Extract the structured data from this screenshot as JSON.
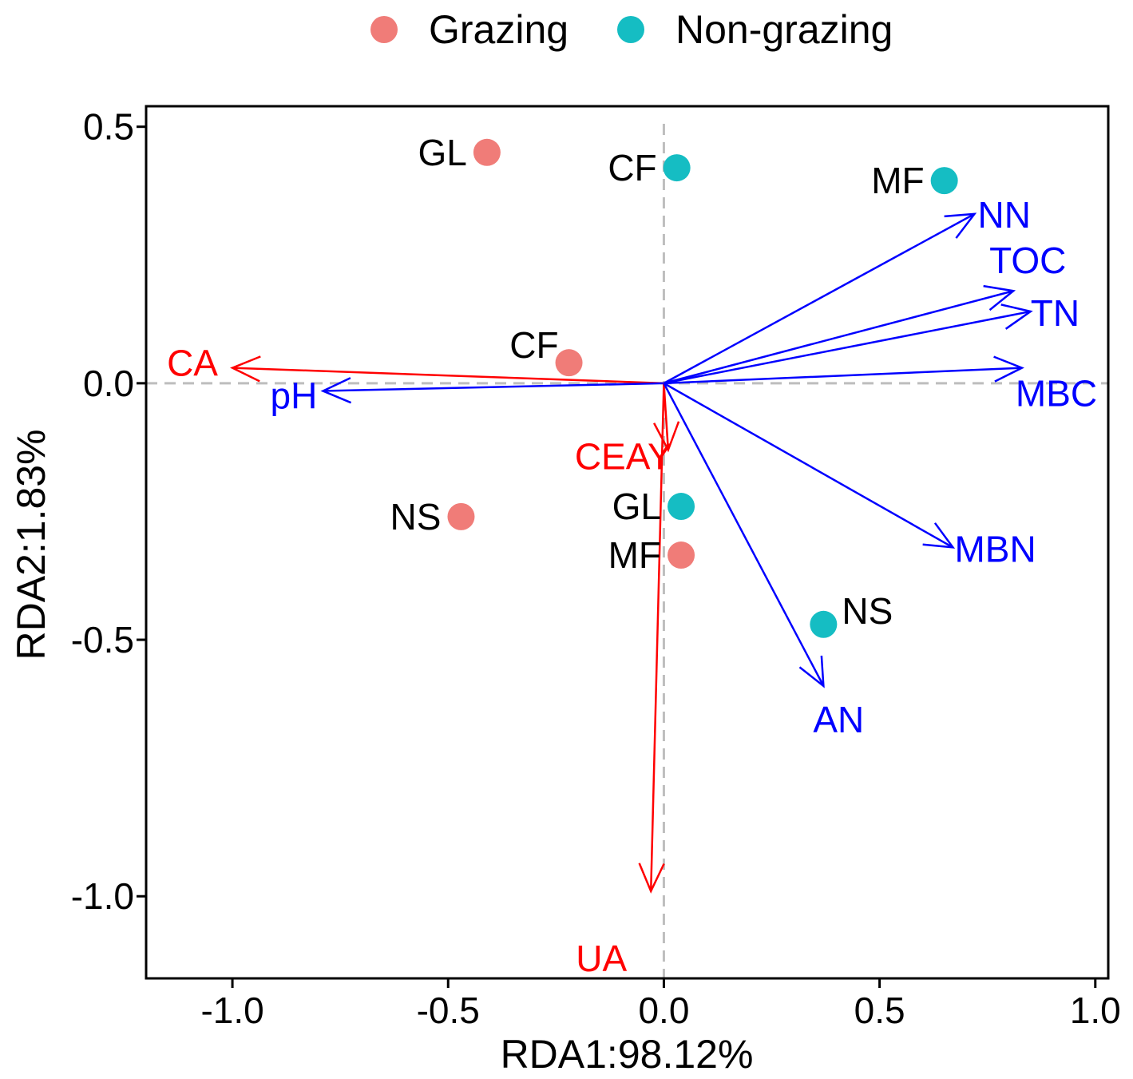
{
  "chart_data": {
    "type": "scatter",
    "xlabel": "RDA1:98.12%",
    "ylabel": "RDA2:1.83%",
    "xlim": [
      -1.2,
      1.03
    ],
    "ylim": [
      -1.16,
      0.54
    ],
    "xticks": [
      -1.0,
      -0.5,
      0.0,
      0.5,
      1.0
    ],
    "xtick_labels": [
      "-1.0",
      "-0.5",
      "0.0",
      "0.5",
      "1.0"
    ],
    "yticks": [
      -1.0,
      -0.5,
      0.0,
      0.5
    ],
    "ytick_labels": [
      "-1.0",
      "-0.5",
      "0.0",
      "0.5"
    ],
    "legend": {
      "position": "top",
      "entries": [
        {
          "name": "Grazing",
          "color": "#F07C78"
        },
        {
          "name": "Non-grazing",
          "color": "#15BDC3"
        }
      ]
    },
    "series": [
      {
        "name": "Grazing",
        "color": "#F07C78",
        "points": [
          {
            "label": "GL",
            "x": -0.41,
            "y": 0.45
          },
          {
            "label": "CF",
            "x": -0.22,
            "y": 0.04
          },
          {
            "label": "NS",
            "x": -0.47,
            "y": -0.26
          },
          {
            "label": "MF",
            "x": 0.04,
            "y": -0.335
          }
        ]
      },
      {
        "name": "Non-grazing",
        "color": "#15BDC3",
        "points": [
          {
            "label": "CF",
            "x": 0.03,
            "y": 0.42
          },
          {
            "label": "MF",
            "x": 0.65,
            "y": 0.395
          },
          {
            "label": "GL",
            "x": 0.04,
            "y": -0.24
          },
          {
            "label": "NS",
            "x": 0.37,
            "y": -0.47
          }
        ]
      }
    ],
    "vectors": [
      {
        "label": "CA",
        "x": -1.0,
        "y": 0.03,
        "color": "#FF0000"
      },
      {
        "label": "pH",
        "x": -0.79,
        "y": -0.015,
        "color": "#0000FF"
      },
      {
        "label": "CEAY",
        "x": 0.01,
        "y": -0.13,
        "color": "#FF0000"
      },
      {
        "label": "UA",
        "x": -0.03,
        "y": -0.99,
        "color": "#FF0000"
      },
      {
        "label": "NN",
        "x": 0.72,
        "y": 0.33,
        "color": "#0000FF"
      },
      {
        "label": "TOC",
        "x": 0.81,
        "y": 0.18,
        "color": "#0000FF"
      },
      {
        "label": "TN",
        "x": 0.85,
        "y": 0.14,
        "color": "#0000FF"
      },
      {
        "label": "MBC",
        "x": 0.83,
        "y": 0.03,
        "color": "#0000FF"
      },
      {
        "label": "MBN",
        "x": 0.67,
        "y": -0.32,
        "color": "#0000FF"
      },
      {
        "label": "AN",
        "x": 0.37,
        "y": -0.59,
        "color": "#0000FF"
      }
    ],
    "reference_lines": {
      "x": 0,
      "y": 0,
      "style": "dashed"
    }
  }
}
